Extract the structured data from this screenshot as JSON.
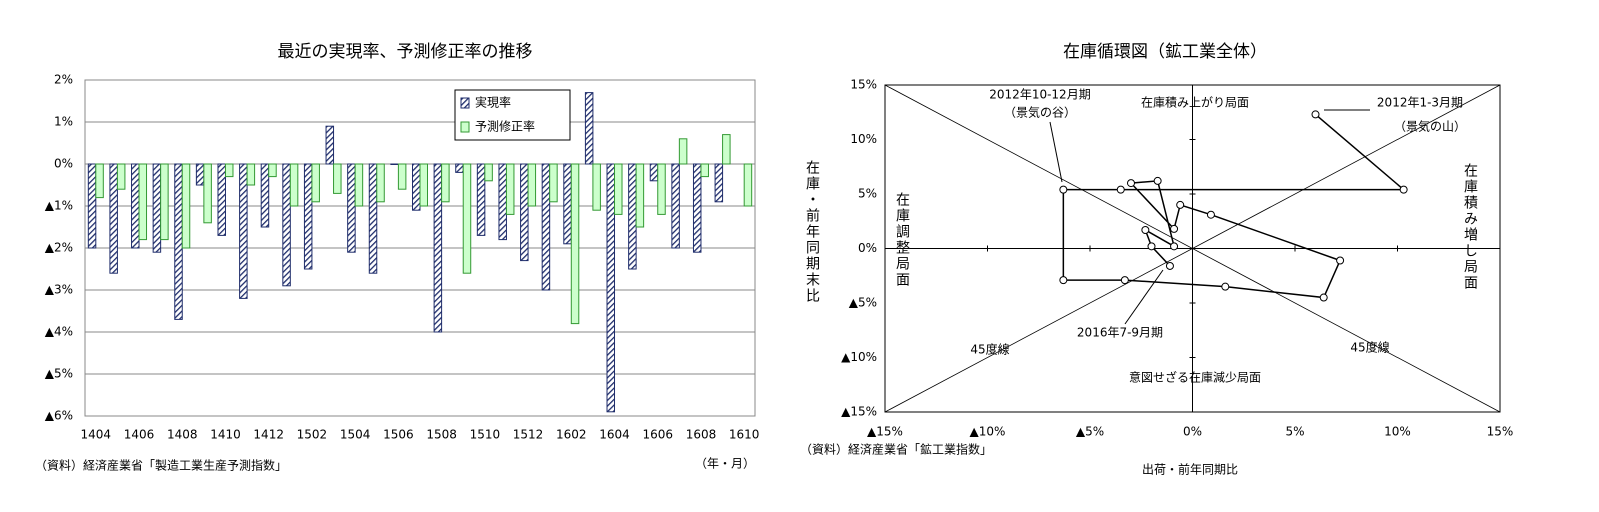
{
  "chart_data": [
    {
      "type": "bar",
      "title": "最近の実現率、予測修正率の推移",
      "categories": [
        "1404",
        null,
        "1406",
        null,
        "1408",
        null,
        "1410",
        null,
        "1412",
        null,
        "1502",
        null,
        "1504",
        null,
        "1506",
        null,
        "1508",
        null,
        "1510",
        null,
        "1512",
        null,
        "1602",
        null,
        "1604",
        null,
        "1606",
        null,
        "1608",
        null,
        "1610"
      ],
      "series": [
        {
          "name": "実現率",
          "color": "#1f2d6b",
          "values": [
            -2.0,
            -2.6,
            -2.0,
            -2.1,
            -3.7,
            -0.5,
            -1.7,
            -3.2,
            -1.5,
            -2.9,
            -2.5,
            0.9,
            -2.1,
            -2.6,
            0.0,
            -1.1,
            -4.0,
            -0.2,
            -1.7,
            -1.8,
            -2.3,
            -3.0,
            -1.9,
            1.7,
            -5.9,
            -2.5,
            -0.4,
            -2.0,
            -2.1,
            -0.9,
            null
          ]
        },
        {
          "name": "予測修正率",
          "color": "#ccffcc",
          "values": [
            -0.8,
            -0.6,
            -1.8,
            -1.8,
            -2.0,
            -1.4,
            -0.3,
            -0.5,
            -0.3,
            -1.0,
            -0.9,
            -0.7,
            -1.0,
            -0.9,
            -0.6,
            -1.0,
            -0.9,
            -2.6,
            -0.4,
            -1.2,
            -1.0,
            -0.9,
            -3.8,
            -1.1,
            -1.2,
            -1.5,
            -1.2,
            0.6,
            -0.3,
            0.7,
            -1.0
          ]
        }
      ],
      "ylim": [
        -6,
        2
      ],
      "yticks": [
        {
          "value": 2,
          "label": "2%"
        },
        {
          "value": 1,
          "label": "1%"
        },
        {
          "value": 0,
          "label": "0%"
        },
        {
          "value": -1,
          "label": "▲1%"
        },
        {
          "value": -2,
          "label": "▲2%"
        },
        {
          "value": -3,
          "label": "▲3%"
        },
        {
          "value": -4,
          "label": "▲4%"
        },
        {
          "value": -5,
          "label": "▲5%"
        },
        {
          "value": -6,
          "label": "▲6%"
        }
      ],
      "grid": true,
      "legend": "upper right",
      "source": "（資料）経済産業省「製造工業生産予測指数」",
      "x_unit": "（年・月）"
    },
    {
      "type": "scatter",
      "title": "在庫循環図（鉱工業全体）",
      "x": [
        6.0,
        10.3,
        -3.5,
        -6.3,
        -6.3,
        -3.3,
        1.6,
        6.4,
        7.2,
        0.9,
        -0.6,
        -0.9,
        -3.0,
        -1.7,
        -0.9,
        -2.3,
        -2.0,
        -1.1
      ],
      "values": [
        12.3,
        5.4,
        5.4,
        5.4,
        -2.9,
        -2.9,
        -3.5,
        -4.5,
        -1.1,
        3.1,
        4.0,
        1.8,
        6.0,
        6.2,
        0.2,
        1.7,
        0.2,
        -1.6
      ],
      "color": "#000000",
      "connected": true,
      "grid": false,
      "xlim": [
        -15,
        15
      ],
      "ylim": [
        -15,
        15
      ],
      "xticks": [
        {
          "value": -15,
          "label": "▲15%"
        },
        {
          "value": -10,
          "label": "▲10%"
        },
        {
          "value": -5,
          "label": "▲5%"
        },
        {
          "value": 0,
          "label": "0%"
        },
        {
          "value": 5,
          "label": "5%"
        },
        {
          "value": 10,
          "label": "10%"
        },
        {
          "value": 15,
          "label": "15%"
        }
      ],
      "yticks": [
        {
          "value": 15,
          "label": "15%"
        },
        {
          "value": 10,
          "label": "10%"
        },
        {
          "value": 5,
          "label": "5%"
        },
        {
          "value": 0,
          "label": "0%"
        },
        {
          "value": -5,
          "label": "▲5%"
        },
        {
          "value": -10,
          "label": "▲10%"
        },
        {
          "value": -15,
          "label": "▲15%"
        }
      ],
      "xlabel": "出荷・前年同期比",
      "ylabel": "在庫・前年同期末比",
      "annotations": [
        "2012年10-12月期",
        "（景気の谷）",
        "2012年1-3月期",
        "（景気の山）",
        "在庫積み上がり局面",
        "在庫積み増し局面",
        "在庫調整局面",
        "意図せざる在庫減少局面",
        "45度線",
        "45度線",
        "2016年7-9月期"
      ],
      "source": "（資料）経済産業省「鉱工業指数」"
    }
  ]
}
